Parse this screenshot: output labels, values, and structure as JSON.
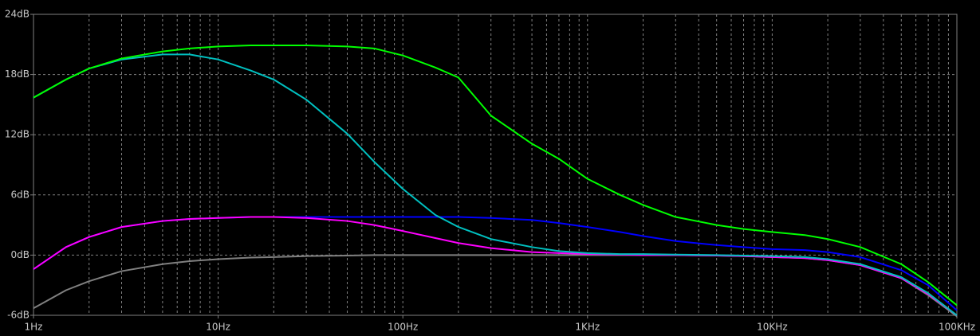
{
  "chart_data": {
    "type": "line",
    "xscale": "log",
    "grid": true,
    "minor_grid": true,
    "background": "#000000",
    "xlim": [
      1,
      100000
    ],
    "ylim": [
      -6,
      24
    ],
    "xticks": [
      {
        "value": 1,
        "label": "1Hz"
      },
      {
        "value": 10,
        "label": "10Hz"
      },
      {
        "value": 100,
        "label": "100Hz"
      },
      {
        "value": 1000,
        "label": "1KHz"
      },
      {
        "value": 10000,
        "label": "10KHz"
      },
      {
        "value": 100000,
        "label": "100KHz"
      }
    ],
    "yticks": [
      {
        "value": -6,
        "label": "-6dB"
      },
      {
        "value": 0,
        "label": "0dB"
      },
      {
        "value": 6,
        "label": "6dB"
      },
      {
        "value": 12,
        "label": "12dB"
      },
      {
        "value": 18,
        "label": "18dB"
      },
      {
        "value": 24,
        "label": "24dB"
      }
    ],
    "x": [
      1,
      1.5,
      2,
      3,
      5,
      7,
      10,
      15,
      20,
      30,
      50,
      70,
      100,
      150,
      200,
      300,
      500,
      700,
      1000,
      1500,
      2000,
      3000,
      5000,
      7000,
      10000,
      15000,
      20000,
      30000,
      50000,
      70000,
      100000
    ],
    "series": [
      {
        "color": "#808080",
        "values": [
          -5.3,
          -3.5,
          -2.6,
          -1.6,
          -0.9,
          -0.6,
          -0.4,
          -0.25,
          -0.2,
          -0.1,
          -0.05,
          0,
          0,
          0,
          0,
          0,
          0,
          0,
          0,
          0,
          0,
          0,
          -0.05,
          -0.1,
          -0.2,
          -0.3,
          -0.5,
          -1.0,
          -2.3,
          -4.0,
          -6.1
        ]
      },
      {
        "color": "#0000ff",
        "values": [
          -1.4,
          0.8,
          1.8,
          2.8,
          3.4,
          3.6,
          3.7,
          3.8,
          3.8,
          3.8,
          3.8,
          3.8,
          3.8,
          3.8,
          3.8,
          3.7,
          3.5,
          3.2,
          2.8,
          2.3,
          1.9,
          1.4,
          1.0,
          0.8,
          0.6,
          0.5,
          0.3,
          -0.2,
          -1.5,
          -3.0,
          -5.5
        ]
      },
      {
        "color": "#ff00ff",
        "values": [
          -1.4,
          0.8,
          1.8,
          2.8,
          3.4,
          3.6,
          3.7,
          3.8,
          3.8,
          3.7,
          3.4,
          3.0,
          2.4,
          1.7,
          1.2,
          0.7,
          0.3,
          0.2,
          0.1,
          0.05,
          0,
          0,
          -0.05,
          -0.1,
          -0.2,
          -0.3,
          -0.5,
          -1.0,
          -2.3,
          -3.9,
          -6.0
        ]
      },
      {
        "color": "#00c0c0",
        "values": [
          15.7,
          17.5,
          18.6,
          19.5,
          20.0,
          20.0,
          19.5,
          18.4,
          17.5,
          15.5,
          12.1,
          9.3,
          6.6,
          4.0,
          2.8,
          1.6,
          0.8,
          0.4,
          0.2,
          0.1,
          0.1,
          0.05,
          0,
          -0.05,
          -0.1,
          -0.2,
          -0.4,
          -0.9,
          -2.2,
          -3.8,
          -6.0
        ]
      },
      {
        "color": "#00ff00",
        "values": [
          15.7,
          17.5,
          18.6,
          19.6,
          20.3,
          20.6,
          20.8,
          20.9,
          20.9,
          20.9,
          20.8,
          20.6,
          19.9,
          18.7,
          17.7,
          13.9,
          11.1,
          9.6,
          7.6,
          6.0,
          5.0,
          3.8,
          3.0,
          2.6,
          2.3,
          2.0,
          1.6,
          0.8,
          -0.9,
          -2.7,
          -5.0
        ]
      }
    ]
  }
}
